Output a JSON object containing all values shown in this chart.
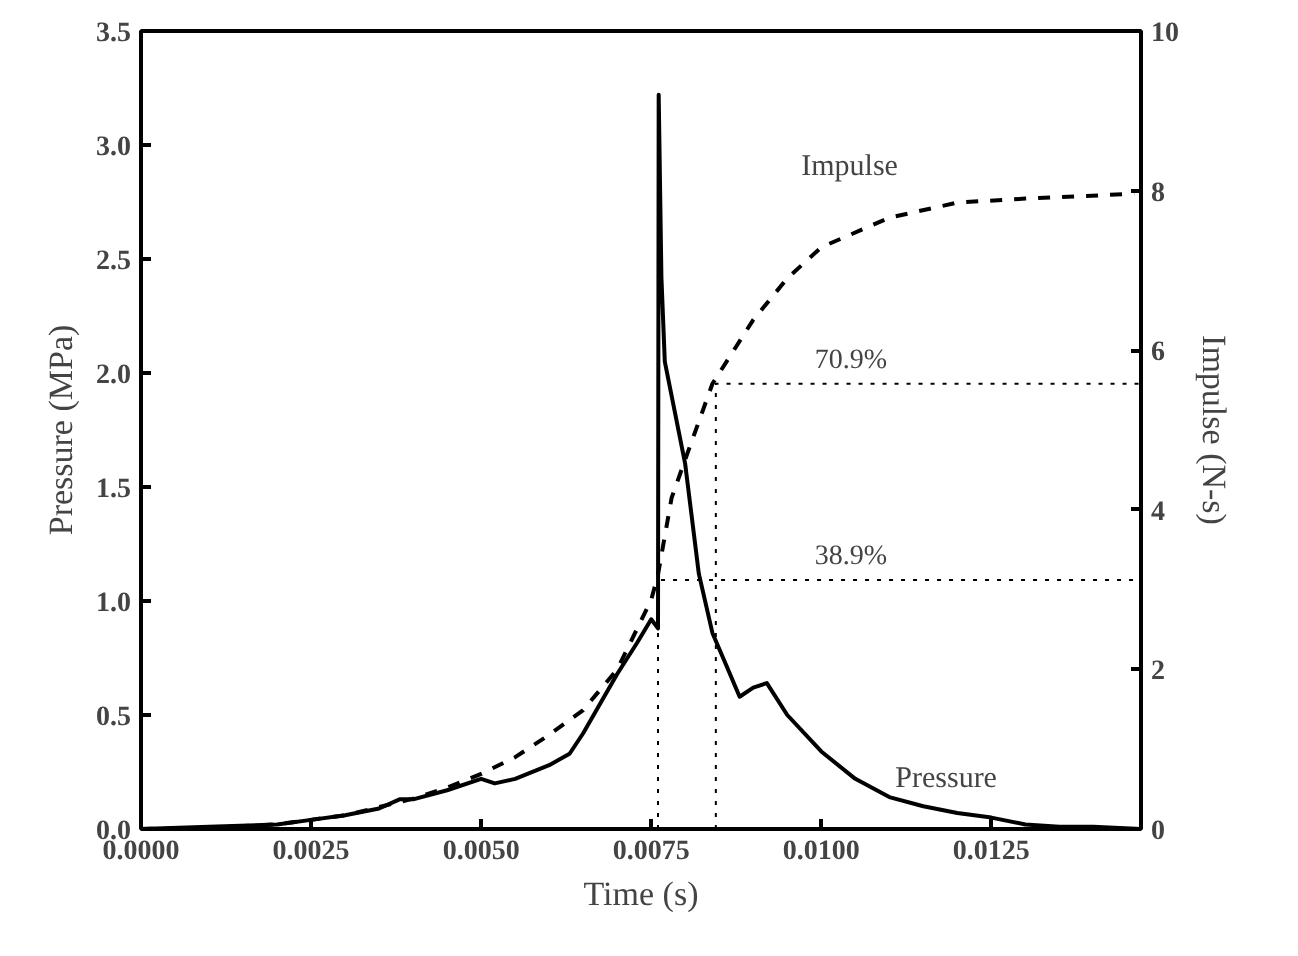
{
  "chart_data": {
    "type": "line",
    "xlabel": "Time (s)",
    "ylabel": "Pressure (MPa)",
    "y2label": "Impulse (N-s)",
    "xlim": [
      0,
      0.0147
    ],
    "xticks": [
      {
        "value": 0,
        "label": "0.0000"
      },
      {
        "value": 0.0025,
        "label": "0.0025"
      },
      {
        "value": 0.005,
        "label": "0.0050"
      },
      {
        "value": 0.0075,
        "label": "0.0075"
      },
      {
        "value": 0.01,
        "label": "0.0100"
      },
      {
        "value": 0.0125,
        "label": "0.0125"
      }
    ],
    "ylim": [
      0,
      3.5
    ],
    "yticks": [
      {
        "value": 0,
        "label": "0.0"
      },
      0.5,
      {
        "value": 1,
        "label": "1.0"
      },
      1.5,
      {
        "value": 2,
        "label": "2.0"
      },
      2.5,
      {
        "value": 3,
        "label": "3.0"
      },
      3.5
    ],
    "y2lim": [
      0,
      10
    ],
    "y2ticks": [
      0,
      2,
      4,
      6,
      8,
      10
    ],
    "grid": false,
    "legend": false,
    "series": [
      {
        "name": "Pressure",
        "color": "#000000",
        "line_style": "solid",
        "x": [
          0,
          0.001,
          0.002,
          0.0025,
          0.003,
          0.0035,
          0.0038,
          0.004,
          0.0045,
          0.005,
          0.0052,
          0.0055,
          0.006,
          0.0063,
          0.0065,
          0.007,
          0.0073,
          0.0075,
          0.0076,
          0.00761,
          0.00765,
          0.0077,
          0.008,
          0.0082,
          0.0084,
          0.0086,
          0.0088,
          0.009,
          0.0092,
          0.0095,
          0.01,
          0.0105,
          0.011,
          0.0115,
          0.012,
          0.0125,
          0.013,
          0.0135,
          0.014,
          0.0147
        ],
        "values": [
          0,
          0.01,
          0.02,
          0.04,
          0.06,
          0.09,
          0.13,
          0.13,
          0.17,
          0.22,
          0.2,
          0.22,
          0.28,
          0.33,
          0.42,
          0.68,
          0.82,
          0.92,
          0.88,
          3.22,
          2.42,
          2.05,
          1.6,
          1.12,
          0.86,
          0.72,
          0.58,
          0.62,
          0.64,
          0.5,
          0.34,
          0.22,
          0.14,
          0.1,
          0.07,
          0.05,
          0.02,
          0.01,
          0.01,
          0
        ]
      },
      {
        "name": "Impulse",
        "color": "#000000",
        "line_style": "dashed",
        "axis": "y2",
        "x": [
          0,
          0.001,
          0.002,
          0.003,
          0.004,
          0.0045,
          0.005,
          0.0055,
          0.006,
          0.0065,
          0.007,
          0.0075,
          0.0076,
          0.0078,
          0.008,
          0.0084,
          0.009,
          0.0095,
          0.01,
          0.011,
          0.012,
          0.013,
          0.0146
        ],
        "values": [
          0,
          0.01,
          0.06,
          0.17,
          0.38,
          0.52,
          0.69,
          0.9,
          1.18,
          1.49,
          2.0,
          2.87,
          3.19,
          4.15,
          4.63,
          5.58,
          6.38,
          6.9,
          7.29,
          7.66,
          7.85,
          7.9,
          7.96
        ]
      },
      {
        "color": "#000000",
        "line_style": "dotted",
        "axis": "y2",
        "x": [
          0.0076,
          0.0076,
          0.0147
        ],
        "values": [
          0,
          3.12,
          3.12
        ]
      },
      {
        "color": "#000000",
        "line_style": "dotted",
        "axis": "y2",
        "x": [
          0.00845,
          0.00845,
          0.0147
        ],
        "values": [
          0,
          5.58,
          5.58
        ]
      }
    ],
    "annotations": [
      "70.9%",
      "38.9%"
    ]
  }
}
